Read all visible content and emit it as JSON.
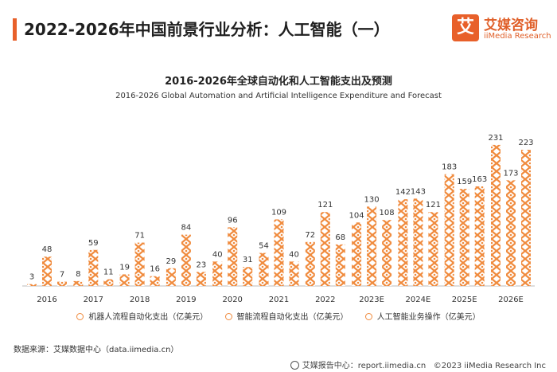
{
  "header": {
    "title": "2022-2026年中国前景行业分析：人工智能（一）",
    "accent_color": "#e8602a"
  },
  "logo": {
    "mark": "艾",
    "cn": "艾媒咨询",
    "en": "iiMedia Research",
    "color": "#e8602a"
  },
  "chart_data": {
    "type": "bar",
    "title": "2016-2026年全球自动化和人工智能支出及预测",
    "subtitle": "2016-2026 Global Automation and Artificial Intelligence Expenditure and Forecast",
    "categories": [
      "2016",
      "2017",
      "2018",
      "2019",
      "2020",
      "2021",
      "2022",
      "2023E",
      "2024E",
      "2025E",
      "2026E"
    ],
    "series": [
      {
        "name": "机器人流程自动化支出（亿美元）",
        "values": [
          3,
          8,
          19,
          29,
          40,
          54,
          72,
          104,
          142,
          183,
          231
        ]
      },
      {
        "name": "智能流程自动化支出（亿美元）",
        "values": [
          48,
          59,
          71,
          84,
          96,
          109,
          121,
          130,
          143,
          159,
          173
        ]
      },
      {
        "name": "人工智能业务操作（亿美元）",
        "values": [
          7,
          11,
          16,
          23,
          31,
          40,
          68,
          108,
          121,
          163,
          223
        ]
      }
    ],
    "ylim": [
      0,
      240
    ],
    "xlabel": "",
    "ylabel": "",
    "bar_color": "#f08a3c"
  },
  "footer": {
    "source": "数据来源：艾媒数据中心（data.iimedia.cn）",
    "site": "艾媒报告中心：report.iimedia.cn",
    "copyright": "©2023  iiMedia Research Inc"
  }
}
